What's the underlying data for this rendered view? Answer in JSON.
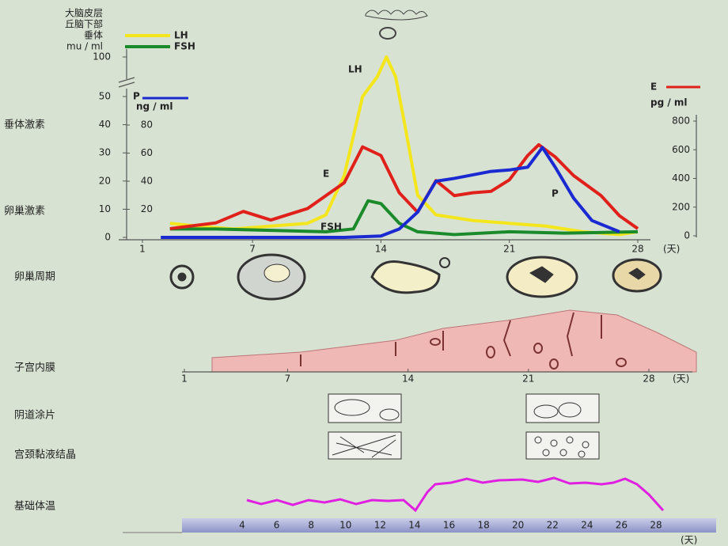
{
  "header": {
    "brain": "大脑皮层",
    "hypothalamus": "丘脑下部",
    "pituitary": "垂体"
  },
  "hormones": {
    "x_unit": "(天)",
    "xlim": [
      1,
      28
    ],
    "xticks": [
      1,
      7,
      14,
      21,
      28
    ],
    "left_axis": {
      "unit": "mu / ml",
      "ylim": [
        0,
        100
      ],
      "yticks": [
        0,
        10,
        20,
        30,
        40,
        50,
        100
      ],
      "axis_break": true,
      "label_top": "垂体激素",
      "label_bottom": "卵巢激素"
    },
    "p_axis": {
      "name": "P",
      "unit": "ng / ml",
      "ylim": [
        0,
        80
      ],
      "yticks": [
        20,
        40,
        60,
        80
      ],
      "color": "#1a2ad0"
    },
    "e_axis": {
      "name": "E",
      "unit": "pg / ml",
      "ylim": [
        0,
        800
      ],
      "yticks": [
        0,
        200,
        400,
        600,
        800
      ],
      "color": "#e0201a"
    },
    "series": [
      {
        "name": "LH",
        "color": "#f4e61c",
        "axis": "left",
        "x": [
          2.5,
          4,
          6,
          8,
          10,
          11,
          12,
          13,
          13.8,
          14.3,
          14.8,
          15.3,
          16,
          17,
          19,
          21,
          23,
          25,
          27,
          28
        ],
        "values": [
          5,
          4,
          3,
          4,
          5,
          8,
          22,
          50,
          75,
          100,
          75,
          40,
          15,
          8,
          6,
          5,
          4,
          2,
          1,
          2
        ]
      },
      {
        "name": "FSH",
        "color": "#1a8a2a",
        "axis": "left",
        "x": [
          2.5,
          5,
          8,
          11,
          12.5,
          13.3,
          14,
          15,
          16,
          18,
          21,
          24,
          28
        ],
        "values": [
          3,
          3,
          2.5,
          2,
          3,
          13,
          12,
          5,
          2,
          1,
          2,
          1.5,
          2
        ]
      },
      {
        "name": "E",
        "color": "#e0201a",
        "axis": "e",
        "x": [
          2.5,
          5,
          6.5,
          8,
          10,
          11,
          12,
          13,
          14,
          15,
          16,
          17,
          18,
          19,
          20,
          21,
          22,
          22.6,
          23.5,
          24.5,
          26,
          27,
          28
        ],
        "values": [
          50,
          90,
          170,
          110,
          190,
          280,
          370,
          620,
          560,
          300,
          165,
          385,
          280,
          300,
          310,
          390,
          560,
          635,
          550,
          420,
          280,
          140,
          50
        ]
      },
      {
        "name": "P",
        "color": "#1a2ad0",
        "axis": "p",
        "x": [
          2,
          12,
          14,
          15,
          16,
          17,
          18,
          20,
          21,
          22,
          22.8,
          23.5,
          24.5,
          25.5,
          27
        ],
        "values": [
          0,
          0,
          1,
          6,
          18,
          40,
          42,
          47,
          48,
          50,
          64,
          50,
          28,
          12,
          4
        ]
      }
    ],
    "annotations": [
      "LH",
      "E",
      "FSH",
      "P"
    ]
  },
  "ovary": {
    "label": "卵巢周期"
  },
  "endometrium": {
    "label": "子宫内膜",
    "xticks": [
      1,
      7,
      14,
      21,
      28
    ],
    "x_unit": "(天)"
  },
  "smear": {
    "label": "阴道涂片"
  },
  "mucus": {
    "label": "宫颈黏液结晶"
  },
  "bbt": {
    "label": "基础体温",
    "xticks": [
      4,
      6,
      8,
      10,
      12,
      14,
      16,
      18,
      20,
      22,
      24,
      26,
      28
    ],
    "x_unit": "(天)"
  }
}
